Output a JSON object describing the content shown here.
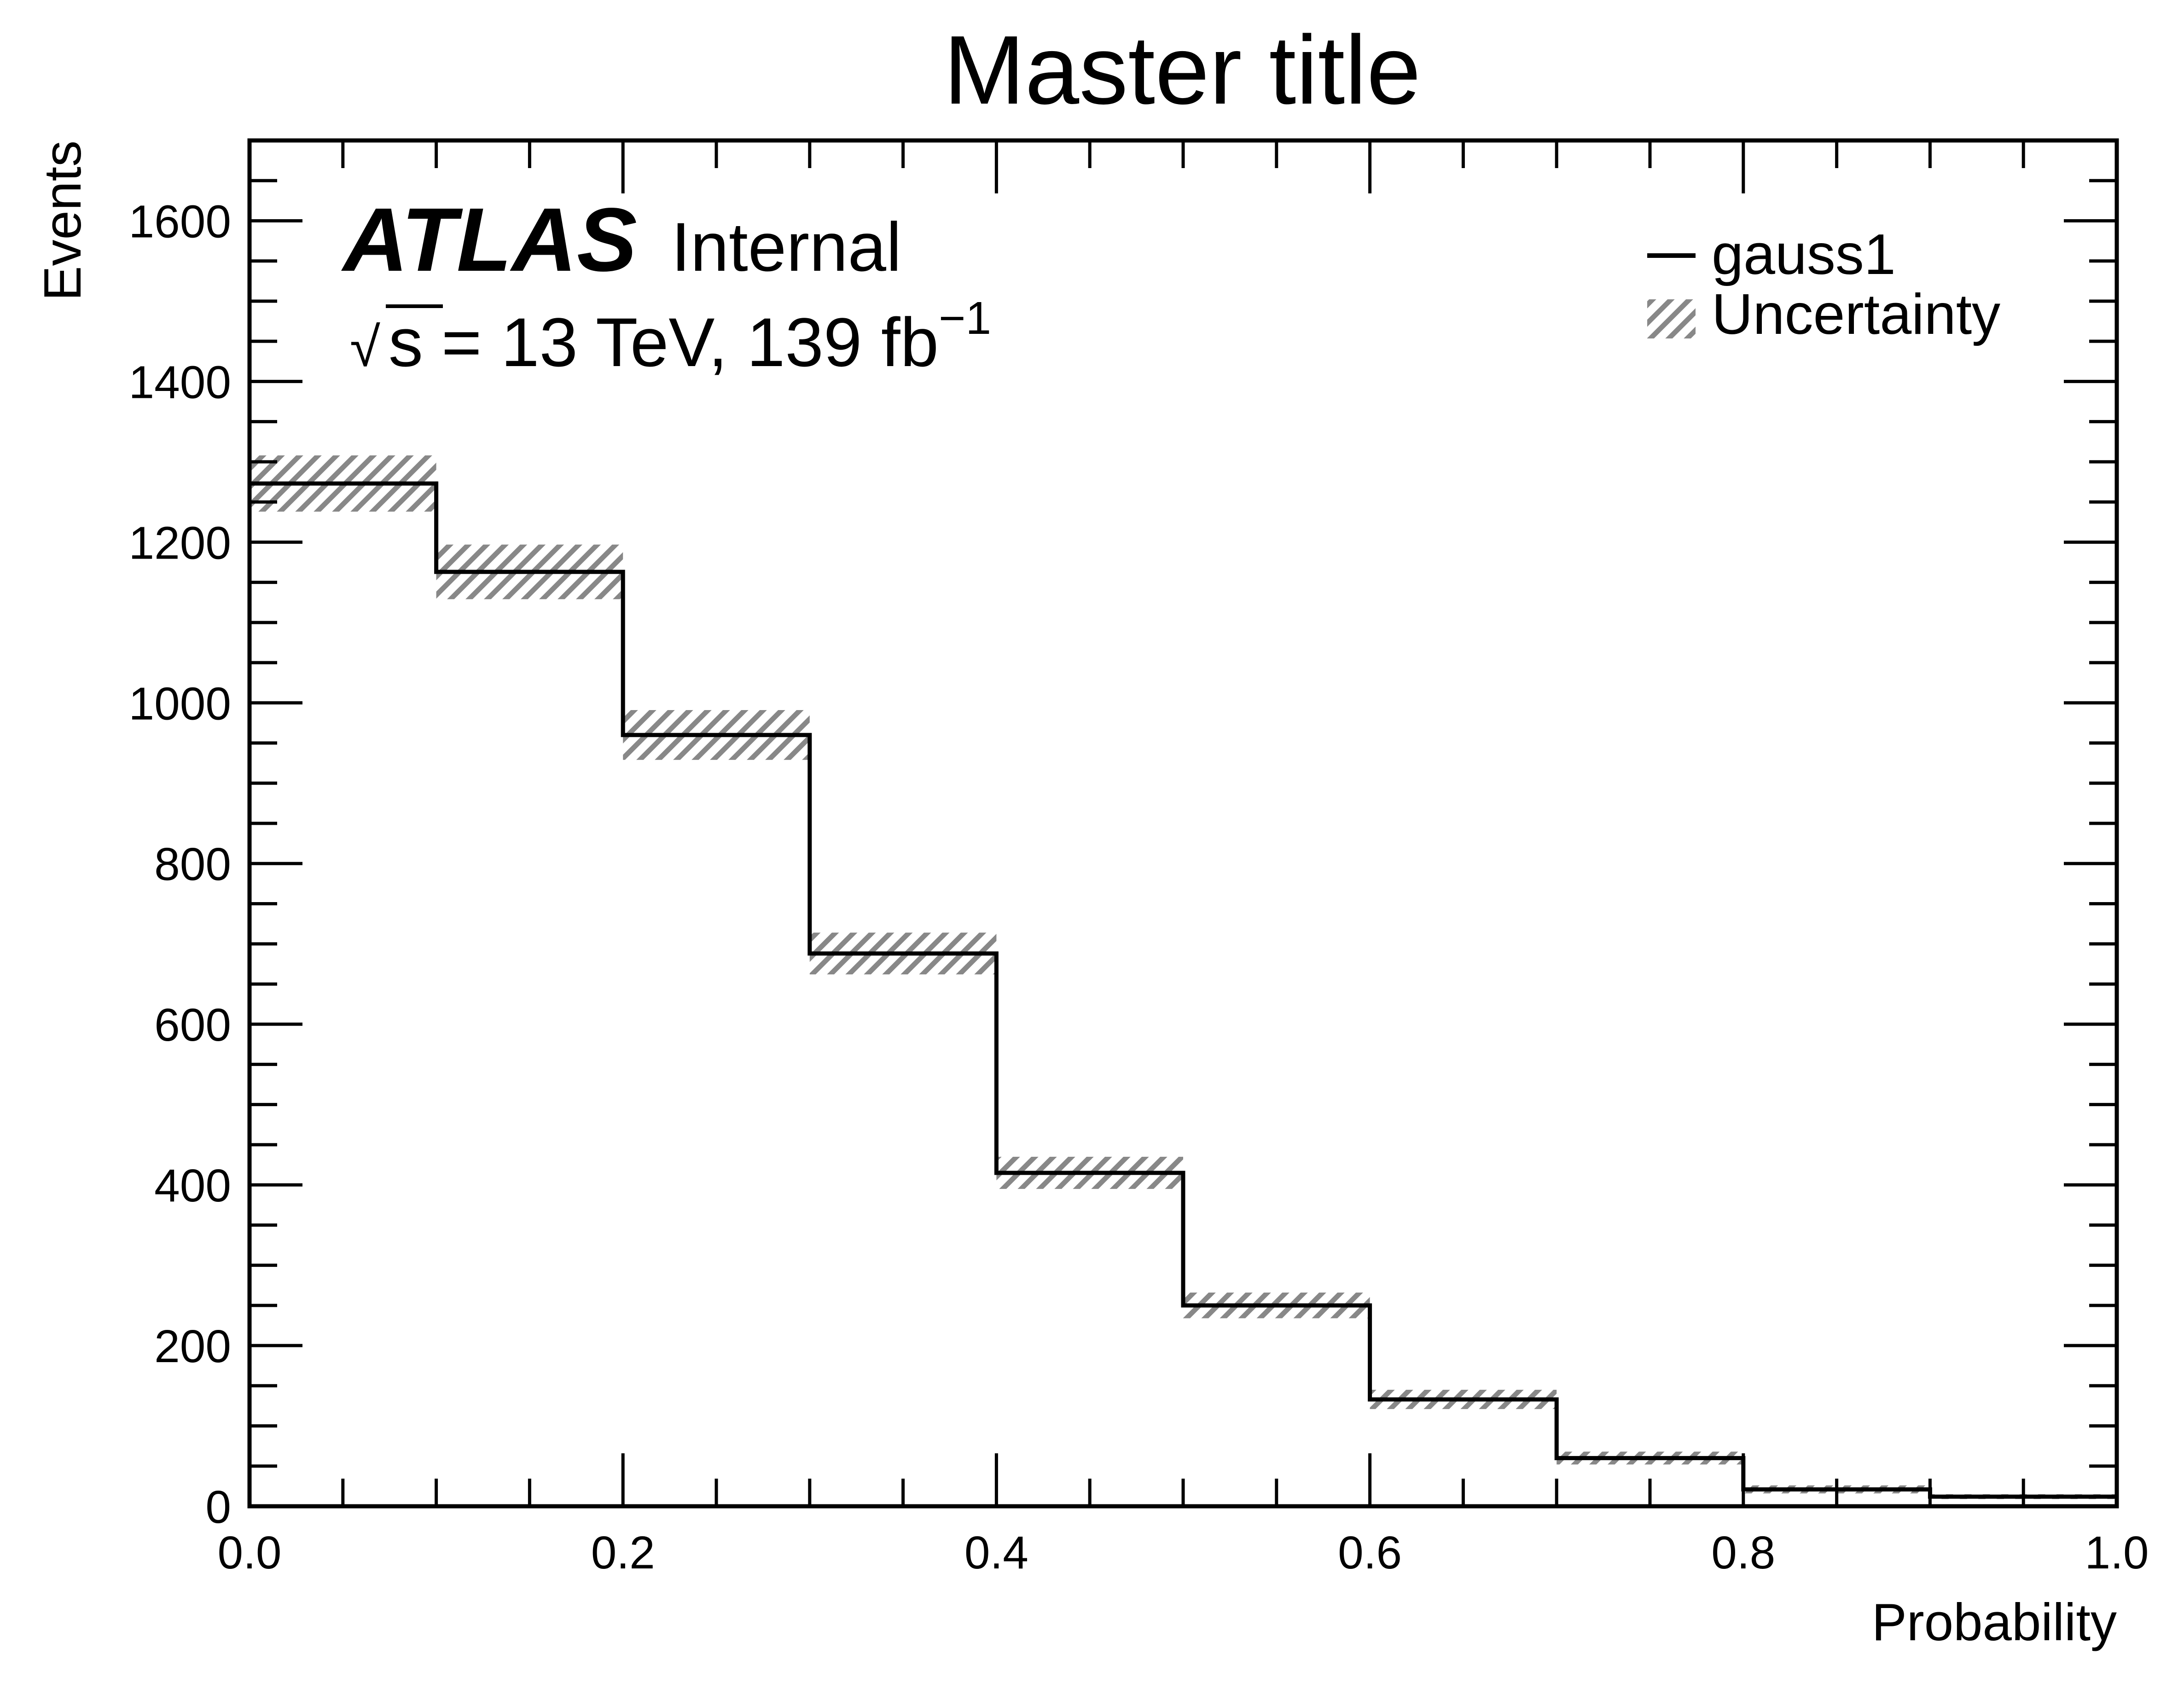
{
  "chart_data": {
    "type": "histogram",
    "title": "Master title",
    "xlabel": "Probability",
    "ylabel": "Events",
    "xlim": [
      0.0,
      1.0
    ],
    "ylim": [
      0,
      1700
    ],
    "x_ticks": [
      0.0,
      0.2,
      0.4,
      0.6,
      0.8,
      1.0
    ],
    "x_tick_labels": [
      "0.0",
      "0.2",
      "0.4",
      "0.6",
      "0.8",
      "1.0"
    ],
    "x_minor_step": 0.05,
    "y_ticks": [
      0,
      200,
      400,
      600,
      800,
      1000,
      1200,
      1400,
      1600
    ],
    "y_tick_labels": [
      "0",
      "200",
      "400",
      "600",
      "800",
      "1000",
      "1200",
      "1400",
      "1600"
    ],
    "y_minor_step": 50,
    "bin_edges": [
      0.0,
      0.1,
      0.2,
      0.3,
      0.4,
      0.5,
      0.6,
      0.7,
      0.8,
      0.9,
      1.0
    ],
    "series": [
      {
        "name": "gauss1",
        "values": [
          1273,
          1163,
          960,
          688,
          415,
          250,
          133,
          60,
          21,
          12
        ],
        "uncertainty": [
          35,
          34,
          31,
          26,
          20,
          16,
          12,
          8,
          5,
          3
        ],
        "color": "#000000"
      }
    ],
    "legend": {
      "placement": "top-right",
      "entries": [
        "gauss1",
        "Uncertainty"
      ]
    },
    "uncertainty_color": "#888888",
    "grid": false
  },
  "annotations": {
    "experiment": "ATLAS",
    "status": "Internal",
    "sqrt": "√",
    "s": "s",
    "energy_prefix": "= 13 TeV, 139 fb",
    "energy_exponent": "−1"
  }
}
